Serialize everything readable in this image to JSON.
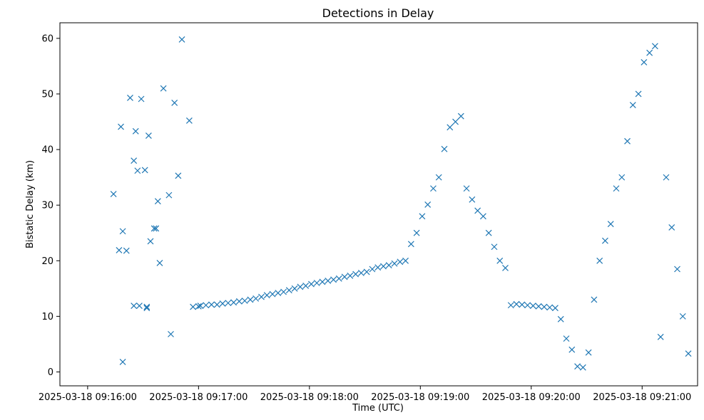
{
  "chart_data": {
    "type": "scatter",
    "title": "Detections in Delay",
    "xlabel": "Time (UTC)",
    "ylabel": "Bistatic Delay (km)",
    "x_axis_type": "datetime",
    "xlim": [
      "2025-03-18 09:15:45",
      "2025-03-18 09:21:30"
    ],
    "ylim": [
      -2.5,
      62.8
    ],
    "x_ticks": [
      "2025-03-18 09:16:00",
      "2025-03-18 09:17:00",
      "2025-03-18 09:18:00",
      "2025-03-18 09:19:00",
      "2025-03-18 09:20:00",
      "2025-03-18 09:21:00"
    ],
    "y_ticks": [
      0,
      10,
      20,
      30,
      40,
      50,
      60
    ],
    "marker": "x",
    "marker_color": "#1f77b4",
    "grid": false,
    "series": [
      {
        "x": [
          "09:16:14",
          "09:16:17",
          "09:16:18",
          "09:16:19",
          "09:16:19",
          "09:16:21",
          "09:16:23",
          "09:16:25",
          "09:16:25",
          "09:16:26",
          "09:16:27",
          "09:16:28",
          "09:16:29",
          "09:16:31",
          "09:16:32",
          "09:16:32",
          "09:16:33",
          "09:16:34",
          "09:16:36",
          "09:16:37",
          "09:16:38",
          "09:16:39",
          "09:16:41",
          "09:16:44",
          "09:16:45",
          "09:16:47",
          "09:16:49",
          "09:16:51",
          "09:16:55",
          "09:16:57",
          "09:17:00",
          "09:17:01",
          "09:17:04",
          "09:17:07",
          "09:17:10",
          "09:17:13",
          "09:17:16",
          "09:17:19",
          "09:17:22",
          "09:17:25",
          "09:17:28",
          "09:17:31",
          "09:17:34",
          "09:17:37",
          "09:17:40",
          "09:17:43",
          "09:17:46",
          "09:17:49",
          "09:17:52",
          "09:17:55",
          "09:17:58",
          "09:18:01",
          "09:18:04",
          "09:18:07",
          "09:18:10",
          "09:18:13",
          "09:18:16",
          "09:18:19",
          "09:18:22",
          "09:18:25",
          "09:18:28",
          "09:18:31",
          "09:18:34",
          "09:18:37",
          "09:18:40",
          "09:18:43",
          "09:18:46",
          "09:18:49",
          "09:18:52",
          "09:18:55",
          "09:18:58",
          "09:19:01",
          "09:19:04",
          "09:19:07",
          "09:19:10",
          "09:19:13",
          "09:19:16",
          "09:19:19",
          "09:19:22",
          "09:19:25",
          "09:19:28",
          "09:19:31",
          "09:19:34",
          "09:19:37",
          "09:19:40",
          "09:19:43",
          "09:19:46",
          "09:19:49",
          "09:19:52",
          "09:19:55",
          "09:19:58",
          "09:20:01",
          "09:20:04",
          "09:20:07",
          "09:20:10",
          "09:20:13",
          "09:20:16",
          "09:20:19",
          "09:20:22",
          "09:20:25",
          "09:20:28",
          "09:20:31",
          "09:20:34",
          "09:20:37",
          "09:20:40",
          "09:20:43",
          "09:20:46",
          "09:20:49",
          "09:20:52",
          "09:20:55",
          "09:20:58",
          "09:21:01",
          "09:21:04",
          "09:21:07",
          "09:21:10",
          "09:21:13",
          "09:21:16",
          "09:21:19",
          "09:21:22",
          "09:21:25"
        ],
        "y": [
          32.0,
          21.9,
          44.1,
          25.3,
          1.8,
          21.8,
          49.3,
          38.0,
          11.9,
          43.3,
          36.2,
          11.9,
          49.1,
          36.3,
          11.7,
          11.5,
          42.5,
          23.5,
          25.8,
          25.8,
          30.7,
          19.6,
          51.0,
          31.8,
          6.8,
          48.4,
          35.3,
          59.8,
          45.2,
          11.7,
          11.8,
          11.9,
          12.0,
          12.1,
          12.1,
          12.3,
          12.4,
          12.5,
          12.7,
          12.8,
          13.0,
          13.2,
          13.5,
          13.8,
          14.0,
          14.2,
          14.4,
          14.7,
          15.0,
          15.3,
          15.5,
          15.8,
          16.0,
          16.2,
          16.4,
          16.6,
          16.8,
          17.1,
          17.3,
          17.6,
          17.8,
          18.0,
          18.5,
          18.8,
          19.0,
          19.2,
          19.5,
          19.8,
          20.0,
          23.0,
          25.0,
          28.0,
          30.1,
          33.0,
          35.0,
          40.1,
          44.0,
          45.0,
          46.0,
          33.0,
          31.0,
          29.0,
          28.0,
          25.0,
          22.5,
          20.0,
          18.7,
          12.0,
          12.2,
          12.1,
          12.0,
          11.9,
          11.8,
          11.7,
          11.6,
          11.5,
          9.5,
          6.0,
          4.0,
          1.0,
          0.8,
          3.5,
          13.0,
          20.0,
          23.6,
          26.6,
          33.0,
          35.0,
          41.5,
          48.0,
          50.0,
          55.7,
          57.4,
          58.6,
          6.3,
          35.0,
          26.0,
          18.5,
          10.0,
          3.3
        ]
      }
    ]
  }
}
